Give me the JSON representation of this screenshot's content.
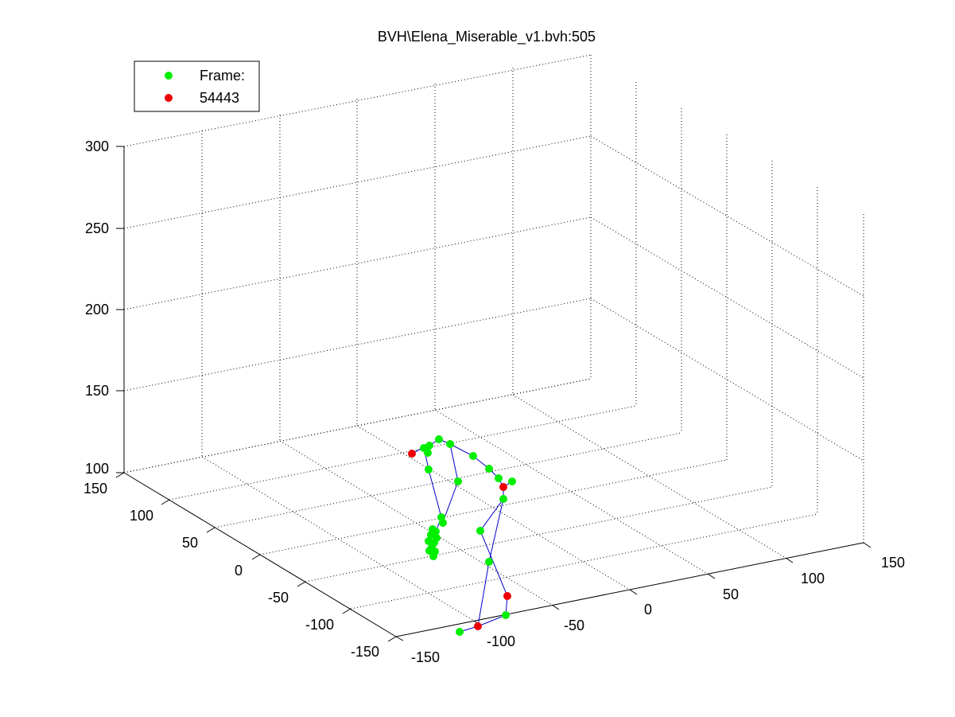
{
  "chart_data": {
    "type": "scatter",
    "title": "BVH\\Elena_Miserable_v1.bvh:505",
    "xlabel": "",
    "ylabel": "",
    "zlabel": "",
    "grid": true,
    "legend_position": "top-left",
    "x_ticks": [
      "-150",
      "-100",
      "-50",
      "0",
      "50",
      "100",
      "150"
    ],
    "y_ticks": [
      "-150",
      "-100",
      "-50",
      "0",
      "50",
      "100",
      "150"
    ],
    "z_ticks": [
      "100",
      "150",
      "200",
      "250",
      "300"
    ],
    "xlim": [
      -150,
      150
    ],
    "ylim": [
      -150,
      150
    ],
    "zlim": [
      100,
      300
    ],
    "legend": [
      {
        "label": "Frame:",
        "color": "#00ff00",
        "marker": "circle"
      },
      {
        "label": "54443",
        "color": "#ff0000",
        "marker": "circle"
      }
    ],
    "colors": {
      "joint": "#00ff00",
      "end_site": "#ff0000",
      "bone": "#0000cc"
    }
  }
}
